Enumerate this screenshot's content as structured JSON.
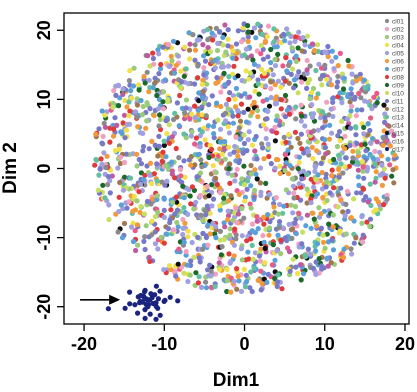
{
  "chart_data": {
    "type": "scatter",
    "title": "",
    "xlabel": "Dim1",
    "ylabel": "Dim 2",
    "xlim": [
      -22.5,
      20.5
    ],
    "ylim": [
      -22.5,
      22.5
    ],
    "x_ticks": [
      -20,
      -10,
      0,
      10,
      20
    ],
    "y_ticks": [
      -20,
      -10,
      0,
      10,
      20
    ],
    "grid": false,
    "legend": "top-right",
    "point_count_note": "approximately 2000 cells across 17 clusters",
    "series": [
      {
        "name": "cl01",
        "color": "#8a8a8a"
      },
      {
        "name": "cl02",
        "color": "#f2a0c0"
      },
      {
        "name": "cl03",
        "color": "#9acb7a"
      },
      {
        "name": "cl04",
        "color": "#f0e04a"
      },
      {
        "name": "cl05",
        "color": "#a0a0e0"
      },
      {
        "name": "cl06",
        "color": "#f29a3a"
      },
      {
        "name": "cl07",
        "color": "#5aa0d8"
      },
      {
        "name": "cl08",
        "color": "#e03a3a"
      },
      {
        "name": "cl09",
        "color": "#1a6a2a"
      },
      {
        "name": "cl10",
        "color": "#c8e060"
      },
      {
        "name": "cl11",
        "color": "#7878c8"
      },
      {
        "name": "cl12",
        "color": "#a07850"
      },
      {
        "name": "cl13",
        "color": "#60c0a0"
      },
      {
        "name": "cl14",
        "color": "#c05aa0"
      },
      {
        "name": "cl15",
        "color": "#101010"
      },
      {
        "name": "cl16",
        "color": "#e85a8a"
      },
      {
        "name": "cl17",
        "color": "#1a237e"
      }
    ],
    "annotations": [
      {
        "type": "arrow",
        "points_to_series": "cl17",
        "from": [
          -20.5,
          -19
        ],
        "to": [
          -15.5,
          -19
        ]
      }
    ],
    "highlighted_cluster": {
      "series": "cl17",
      "center": [
        -12,
        -19.5
      ],
      "spread": [
        1.2,
        0.9
      ],
      "count": 40
    }
  }
}
